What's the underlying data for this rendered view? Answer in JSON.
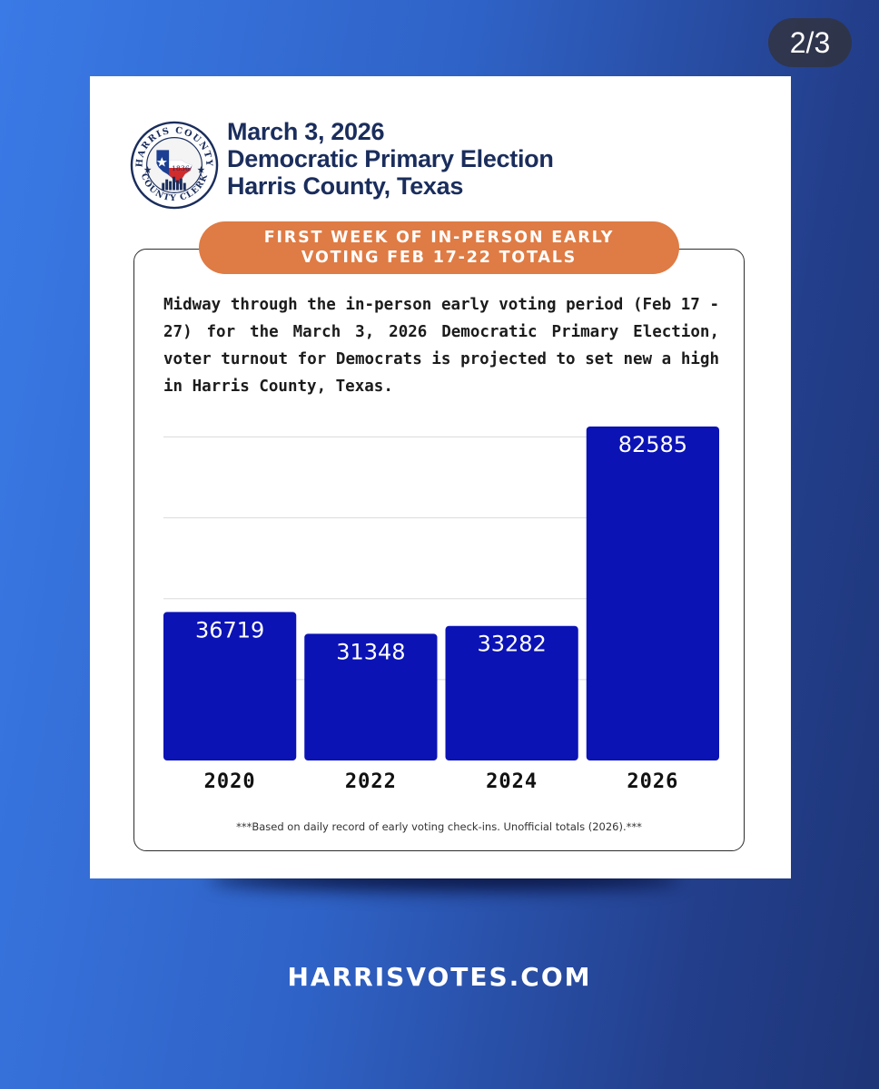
{
  "page_counter": "2/3",
  "seal": {
    "ring_top": "HARRIS COUNTY",
    "ring_bottom": "COUNTY CLERK",
    "year": "1836"
  },
  "header": {
    "line1": "March 3, 2026",
    "line2": "Democratic Primary Election",
    "line3": "Harris County, Texas"
  },
  "banner": {
    "line1": "FIRST WEEK OF IN-PERSON EARLY",
    "line2": "VOTING  FEB 17-22 TOTALS"
  },
  "intro": "Midway through the in-person early voting period (Feb 17 - 27) for the March 3, 2026 Democratic Primary Election, voter turnout for Democrats is projected to set new a high in Harris County, Texas.",
  "chart_data": {
    "type": "bar",
    "categories": [
      "2020",
      "2022",
      "2024",
      "2026"
    ],
    "values": [
      36719,
      31348,
      33282,
      82585
    ],
    "ylim": [
      0,
      82585
    ],
    "grid": true,
    "colors": {
      "bar": "#0b13b5",
      "label": "#ffffff",
      "grid": "#dcdcdc"
    }
  },
  "footnote": "***Based on daily record of early voting check-ins. Unofficial totals (2026).***",
  "website": "HARRISVOTES.COM",
  "colors": {
    "heading": "#1a2d5c",
    "banner": "#df7b44",
    "bar": "#0b13b5"
  }
}
